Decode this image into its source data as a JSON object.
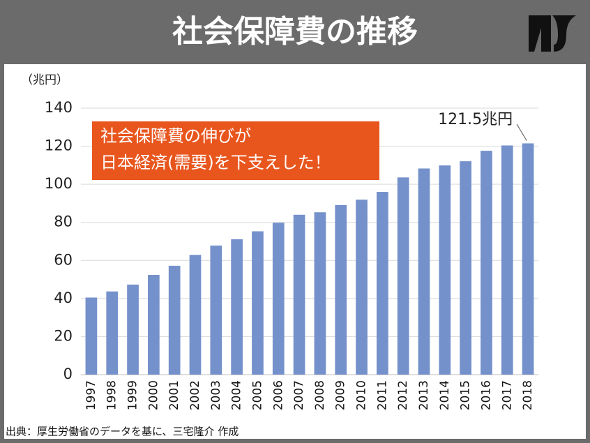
{
  "header": {
    "title": "社会保障費の推移"
  },
  "chart_data": {
    "type": "bar",
    "y_label": "（兆円）",
    "categories": [
      "1997",
      "1998",
      "1999",
      "2000",
      "2001",
      "2002",
      "2003",
      "2004",
      "2005",
      "2006",
      "2007",
      "2008",
      "2009",
      "2010",
      "2011",
      "2012",
      "2013",
      "2014",
      "2015",
      "2016",
      "2017",
      "2018"
    ],
    "values": [
      40.5,
      43.7,
      47.3,
      52.4,
      57.2,
      62.9,
      67.8,
      71.1,
      75.3,
      79.8,
      84,
      85.3,
      89.1,
      91.9,
      96,
      103.6,
      108.3,
      109.9,
      112.1,
      117.6,
      120.4,
      121.5
    ],
    "value_labels": [
      null,
      null,
      null,
      null,
      null,
      null,
      null,
      null,
      null,
      null,
      null,
      null,
      null,
      null,
      null,
      null,
      null,
      null,
      null,
      null,
      null,
      "121.5兆円"
    ],
    "color": "#7591cb",
    "ylim": [
      0,
      140
    ],
    "yticks": [
      0,
      20,
      40,
      60,
      80,
      100,
      120,
      140
    ],
    "grid": true,
    "annotation": [
      "社会保障費の伸びが",
      "日本経済(需要)を下支えした！"
    ]
  },
  "footer": {
    "source": "出典：厚生労働省のデータを基に、三宅隆介 作成"
  }
}
